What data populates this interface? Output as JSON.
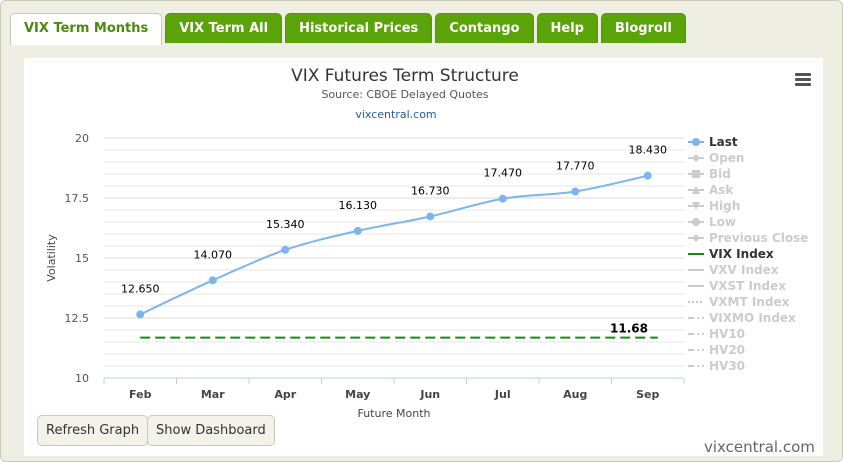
{
  "tabs": [
    {
      "label": "VIX Term Months",
      "active": true
    },
    {
      "label": "VIX Term All",
      "active": false
    },
    {
      "label": "Historical Prices",
      "active": false
    },
    {
      "label": "Contango",
      "active": false
    },
    {
      "label": "Help",
      "active": false
    },
    {
      "label": "Blogroll",
      "active": false
    }
  ],
  "buttons": {
    "refresh": "Refresh Graph",
    "dashboard": "Show Dashboard"
  },
  "footer": "vixcentral.com",
  "icons": {
    "menu": "hamburger-menu-icon"
  },
  "colors": {
    "tab_green": "#5aa40a",
    "series_last": "#7cb5ec",
    "vix_index": "#168a16"
  },
  "chart_data": {
    "type": "line",
    "title": "VIX Futures Term Structure",
    "subtitle": "Source: CBOE Delayed Quotes",
    "credit": "vixcentral.com",
    "xlabel": "Future Month",
    "ylabel": "Volatility",
    "categories": [
      "Feb",
      "Mar",
      "Apr",
      "May",
      "Jun",
      "Jul",
      "Aug",
      "Sep"
    ],
    "ylim": [
      10,
      20
    ],
    "yticks": [
      "10",
      "12.5",
      "15",
      "17.5",
      "20"
    ],
    "grid": true,
    "series": [
      {
        "name": "Last",
        "values": [
          12.65,
          14.07,
          15.34,
          16.13,
          16.73,
          17.47,
          17.77,
          18.43
        ],
        "labels": [
          "12.650",
          "14.070",
          "15.340",
          "16.130",
          "16.730",
          "17.470",
          "17.770",
          "18.430"
        ]
      },
      {
        "name": "VIX Index",
        "value": 11.68,
        "label": "11.68",
        "style": "dashed"
      }
    ],
    "legend": {
      "placement": "right",
      "items": [
        {
          "name": "Last",
          "visible": true,
          "marker": "circle",
          "line": "solid"
        },
        {
          "name": "Open",
          "visible": false,
          "marker": "diamond",
          "line": "solid"
        },
        {
          "name": "Bid",
          "visible": false,
          "marker": "square",
          "line": "solid"
        },
        {
          "name": "Ask",
          "visible": false,
          "marker": "triangle",
          "line": "solid"
        },
        {
          "name": "High",
          "visible": false,
          "marker": "triangle-down",
          "line": "solid"
        },
        {
          "name": "Low",
          "visible": false,
          "marker": "circle",
          "line": "solid"
        },
        {
          "name": "Previous Close",
          "visible": false,
          "marker": "diamond",
          "line": "solid"
        },
        {
          "name": "VIX Index",
          "visible": true,
          "marker": "none",
          "line": "solid"
        },
        {
          "name": "VXV Index",
          "visible": false,
          "marker": "none",
          "line": "solid"
        },
        {
          "name": "VXST Index",
          "visible": false,
          "marker": "none",
          "line": "solid"
        },
        {
          "name": "VXMT Index",
          "visible": false,
          "marker": "none",
          "line": "dotted"
        },
        {
          "name": "VIXMO Index",
          "visible": false,
          "marker": "none",
          "line": "dashdot"
        },
        {
          "name": "HV10",
          "visible": false,
          "marker": "none",
          "line": "dashdot"
        },
        {
          "name": "HV20",
          "visible": false,
          "marker": "none",
          "line": "dashdot"
        },
        {
          "name": "HV30",
          "visible": false,
          "marker": "none",
          "line": "dashdot"
        }
      ]
    }
  }
}
